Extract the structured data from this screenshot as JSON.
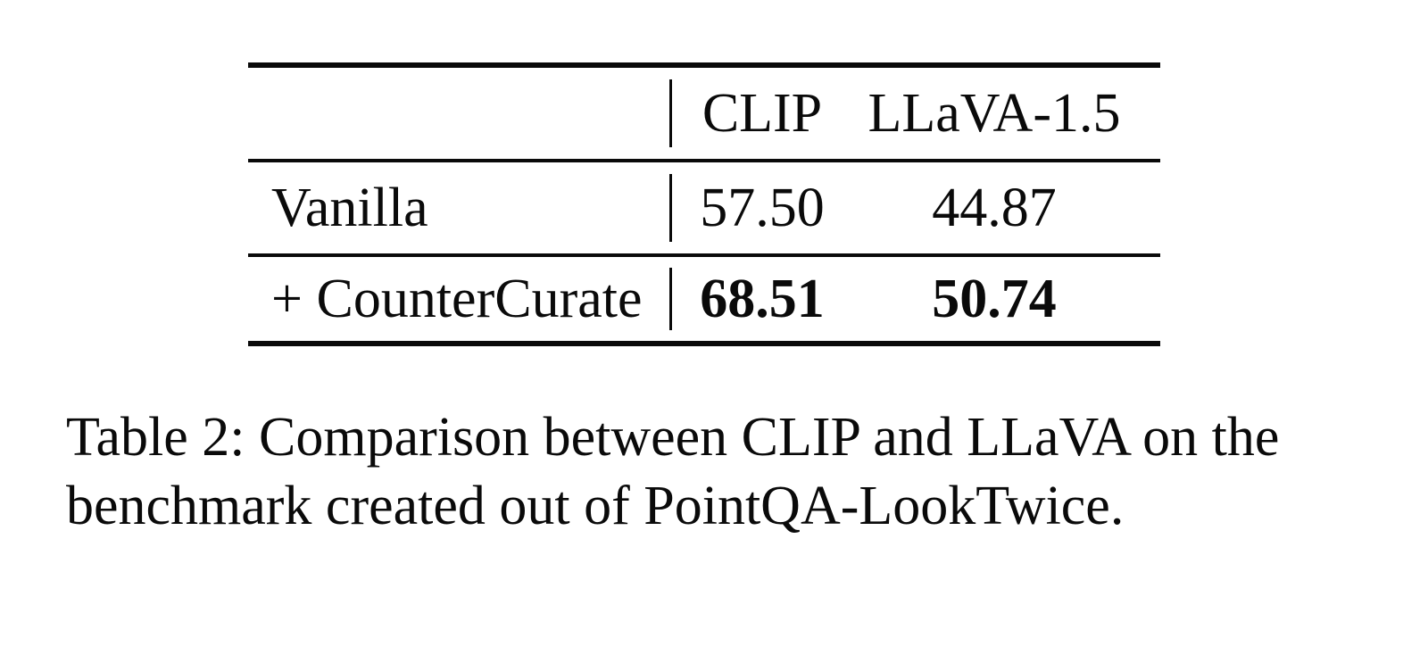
{
  "table": {
    "columns": [
      "CLIP",
      "LLaVA-1.5"
    ],
    "rows": [
      {
        "label": "Vanilla",
        "clip": "57.50",
        "llava": "44.87"
      },
      {
        "label": "+ CounterCurate",
        "clip": "68.51",
        "llava": "50.74"
      }
    ]
  },
  "caption": {
    "line1": "Table 2: Comparison between CLIP and LLaVA on the",
    "line2": "benchmark created out of PointQA-LookTwice."
  },
  "colors": {
    "text": "#0a0a0a",
    "background": "#ffffff"
  }
}
